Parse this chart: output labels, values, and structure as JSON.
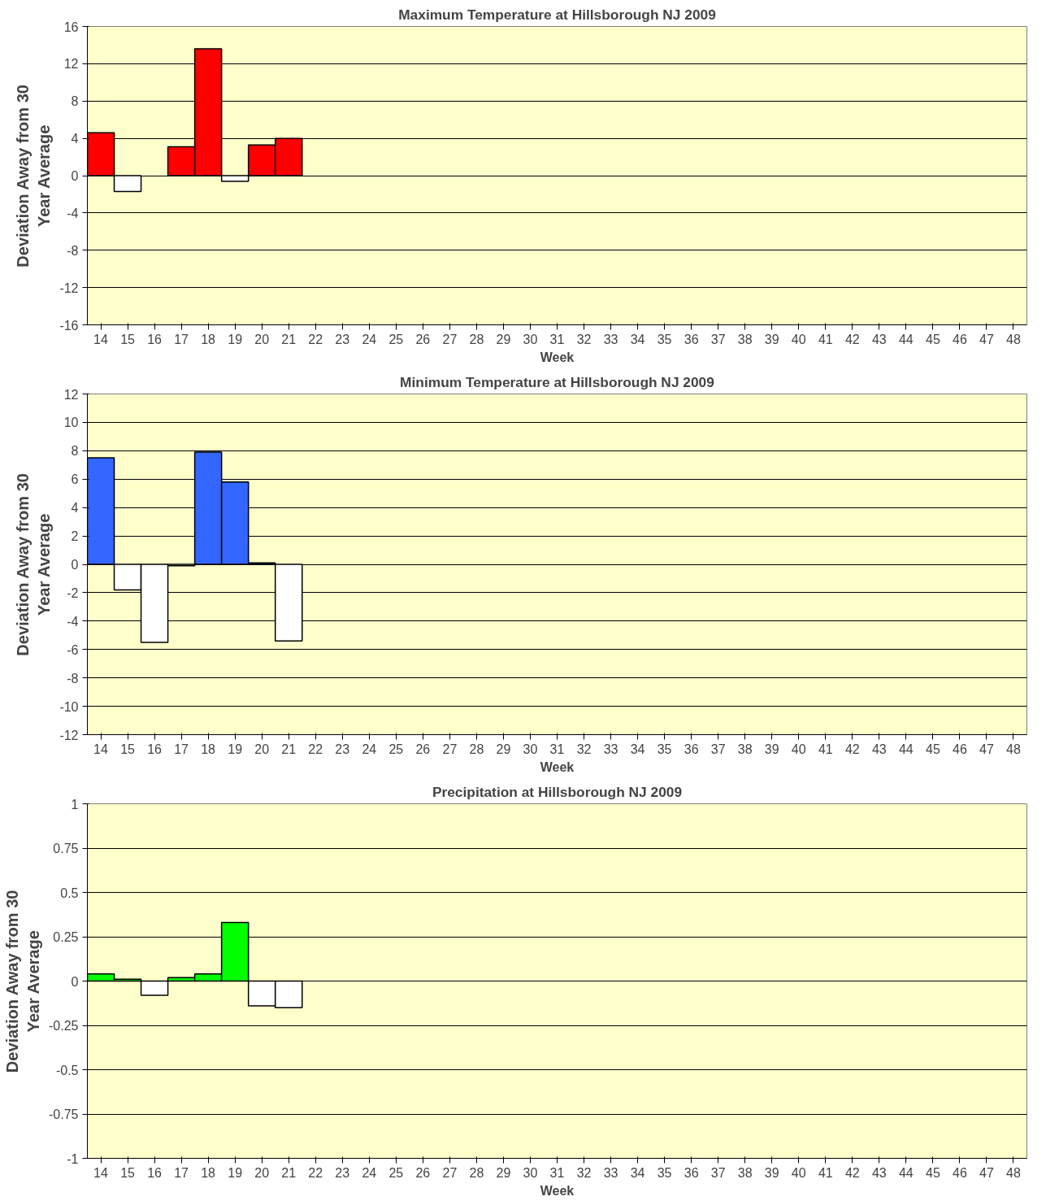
{
  "chart_data": [
    {
      "type": "bar",
      "title": "Maximum Temperature at Hillsborough NJ 2009",
      "xlabel": "Week",
      "ylabel": "Deviation Away from 30\nYear Average",
      "categories": [
        "14",
        "15",
        "16",
        "17",
        "18",
        "19",
        "20",
        "21",
        "22",
        "23",
        "24",
        "25",
        "26",
        "27",
        "28",
        "29",
        "30",
        "31",
        "32",
        "33",
        "34",
        "35",
        "36",
        "37",
        "38",
        "39",
        "40",
        "41",
        "42",
        "43",
        "44",
        "45",
        "46",
        "47",
        "48"
      ],
      "values": [
        4.6,
        -1.7,
        null,
        3.1,
        13.6,
        -0.6,
        3.3,
        4.0,
        null,
        null,
        null,
        null,
        null,
        null,
        null,
        null,
        null,
        null,
        null,
        null,
        null,
        null,
        null,
        null,
        null,
        null,
        null,
        null,
        null,
        null,
        null,
        null,
        null,
        null,
        null
      ],
      "colors": [
        "#ff0000",
        "#ffffff",
        "#ffffff",
        "#ff0000",
        "#ff0000",
        "#ffffff",
        "#ff0000",
        "#ff0000",
        "#ffffff",
        "#ffffff",
        "#ffffff",
        "#ffffff",
        "#ffffff",
        "#ffffff",
        "#ffffff",
        "#ffffff",
        "#ffffff",
        "#ffffff",
        "#ffffff",
        "#ffffff",
        "#ffffff",
        "#ffffff",
        "#ffffff",
        "#ffffff",
        "#ffffff",
        "#ffffff",
        "#ffffff",
        "#ffffff",
        "#ffffff",
        "#ffffff",
        "#ffffff",
        "#ffffff",
        "#ffffff",
        "#ffffff",
        "#ffffff"
      ],
      "ylim": [
        -16,
        16
      ],
      "yticks": [
        -16,
        -12,
        -8,
        -4,
        0,
        4,
        8,
        12,
        16
      ],
      "grid": "y"
    },
    {
      "type": "bar",
      "title": "Minimum Temperature at Hillsborough NJ 2009",
      "xlabel": "Week",
      "ylabel": "Deviation Away from 30\nYear Average",
      "categories": [
        "14",
        "15",
        "16",
        "17",
        "18",
        "19",
        "20",
        "21",
        "22",
        "23",
        "24",
        "25",
        "26",
        "27",
        "28",
        "29",
        "30",
        "31",
        "32",
        "33",
        "34",
        "35",
        "36",
        "37",
        "38",
        "39",
        "40",
        "41",
        "42",
        "43",
        "44",
        "45",
        "46",
        "47",
        "48"
      ],
      "values": [
        7.5,
        -1.8,
        -5.5,
        -0.1,
        7.9,
        5.8,
        0.1,
        -5.4,
        null,
        null,
        null,
        null,
        null,
        null,
        null,
        null,
        null,
        null,
        null,
        null,
        null,
        null,
        null,
        null,
        null,
        null,
        null,
        null,
        null,
        null,
        null,
        null,
        null,
        null,
        null
      ],
      "colors": [
        "#3366ff",
        "#ffffff",
        "#ffffff",
        "#ffffff",
        "#3366ff",
        "#3366ff",
        "#3366ff",
        "#ffffff",
        "#ffffff",
        "#ffffff",
        "#ffffff",
        "#ffffff",
        "#ffffff",
        "#ffffff",
        "#ffffff",
        "#ffffff",
        "#ffffff",
        "#ffffff",
        "#ffffff",
        "#ffffff",
        "#ffffff",
        "#ffffff",
        "#ffffff",
        "#ffffff",
        "#ffffff",
        "#ffffff",
        "#ffffff",
        "#ffffff",
        "#ffffff",
        "#ffffff",
        "#ffffff",
        "#ffffff",
        "#ffffff",
        "#ffffff",
        "#ffffff"
      ],
      "ylim": [
        -12,
        12
      ],
      "yticks": [
        -12,
        -10,
        -8,
        -6,
        -4,
        -2,
        0,
        2,
        4,
        6,
        8,
        10,
        12
      ],
      "grid": "y"
    },
    {
      "type": "bar",
      "title": "Precipitation at Hillsborough NJ 2009",
      "xlabel": "Week",
      "ylabel": "Deviation Away from 30\nYear Average",
      "categories": [
        "14",
        "15",
        "16",
        "17",
        "18",
        "19",
        "20",
        "21",
        "22",
        "23",
        "24",
        "25",
        "26",
        "27",
        "28",
        "29",
        "30",
        "31",
        "32",
        "33",
        "34",
        "35",
        "36",
        "37",
        "38",
        "39",
        "40",
        "41",
        "42",
        "43",
        "44",
        "45",
        "46",
        "47",
        "48"
      ],
      "values": [
        0.04,
        0.01,
        -0.08,
        0.02,
        0.04,
        0.33,
        -0.14,
        -0.15,
        null,
        null,
        null,
        null,
        null,
        null,
        null,
        null,
        null,
        null,
        null,
        null,
        null,
        null,
        null,
        null,
        null,
        null,
        null,
        null,
        null,
        null,
        null,
        null,
        null,
        null,
        null
      ],
      "colors": [
        "#00ff00",
        "#00ff00",
        "#ffffff",
        "#00ff00",
        "#00ff00",
        "#00ff00",
        "#ffffff",
        "#ffffff",
        "#ffffff",
        "#ffffff",
        "#ffffff",
        "#ffffff",
        "#ffffff",
        "#ffffff",
        "#ffffff",
        "#ffffff",
        "#ffffff",
        "#ffffff",
        "#ffffff",
        "#ffffff",
        "#ffffff",
        "#ffffff",
        "#ffffff",
        "#ffffff",
        "#ffffff",
        "#ffffff",
        "#ffffff",
        "#ffffff",
        "#ffffff",
        "#ffffff",
        "#ffffff",
        "#ffffff",
        "#ffffff",
        "#ffffff",
        "#ffffff"
      ],
      "ylim": [
        -1,
        1
      ],
      "yticks": [
        -1,
        -0.75,
        -0.5,
        -0.25,
        0,
        0.25,
        0.5,
        0.75,
        1
      ],
      "grid": "y"
    }
  ]
}
